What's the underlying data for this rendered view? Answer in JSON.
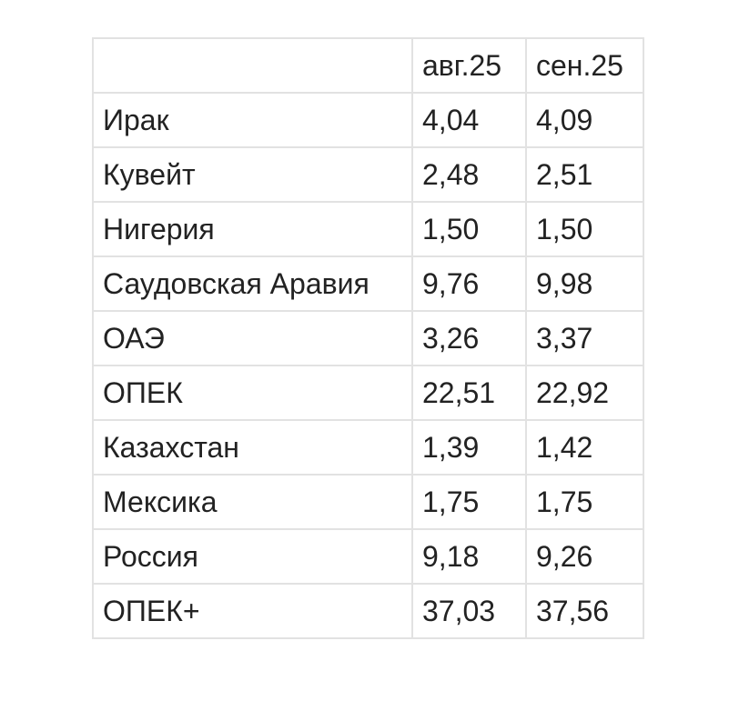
{
  "table": {
    "headers": [
      "",
      "авг.25",
      "сен.25"
    ],
    "rows": [
      [
        "Ирак",
        "4,04",
        "4,09"
      ],
      [
        "Кувейт",
        "2,48",
        "2,51"
      ],
      [
        "Нигерия",
        "1,50",
        "1,50"
      ],
      [
        "Саудовская Аравия",
        "9,76",
        "9,98"
      ],
      [
        "ОАЭ",
        "3,26",
        "3,37"
      ],
      [
        "ОПЕК",
        "22,51",
        "22,92"
      ],
      [
        "Казахстан",
        "1,39",
        "1,42"
      ],
      [
        "Мексика",
        "1,75",
        "1,75"
      ],
      [
        "Россия",
        "9,18",
        "9,26"
      ],
      [
        "ОПЕК+",
        "37,03",
        "37,56"
      ]
    ]
  }
}
